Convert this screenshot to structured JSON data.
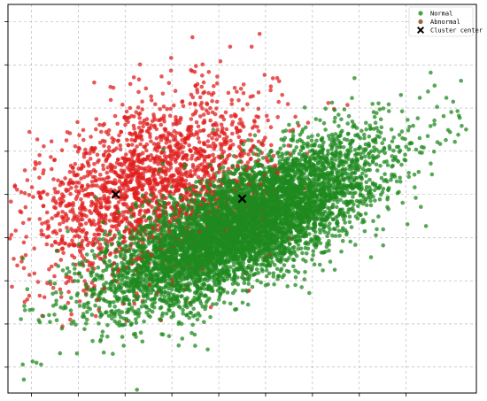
{
  "chart_data": {
    "type": "scatter",
    "title": "",
    "xlabel": "",
    "ylabel": "",
    "grid": true,
    "legend_position": "top-right",
    "xlim": [
      0,
      10
    ],
    "ylim": [
      0,
      9
    ],
    "x_ticks": [
      0.5,
      1.5,
      2.5,
      3.5,
      4.5,
      5.5,
      6.5,
      7.5,
      8.5
    ],
    "y_ticks": [
      0.6,
      1.6,
      2.6,
      3.6,
      4.6,
      5.6,
      6.6,
      7.6,
      8.6
    ],
    "series": [
      {
        "name": "Normal",
        "color": "#1f8a1f",
        "marker": "circle",
        "count_approx": 8000,
        "center": [
          5.0,
          3.9
        ],
        "std": [
          1.45,
          0.95
        ],
        "correlation": 0.72
      },
      {
        "name": "Abnormal",
        "color": "#e0201f",
        "marker": "circle",
        "count_approx": 2000,
        "center": [
          3.0,
          4.8
        ],
        "std": [
          1.3,
          1.05
        ],
        "correlation": 0.45
      },
      {
        "name": "Cluster center",
        "color": "#000000",
        "marker": "x-filled",
        "points": [
          [
            2.3,
            4.6
          ],
          [
            5.0,
            4.5
          ]
        ]
      }
    ],
    "legend": [
      "Normal",
      "Abnormal",
      "Cluster center"
    ]
  }
}
